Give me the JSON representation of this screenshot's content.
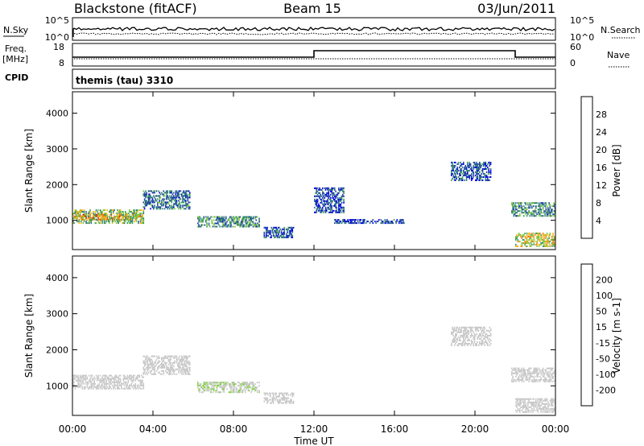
{
  "header": {
    "station": "Blackstone (fitACF)",
    "beam": "Beam 15",
    "date": "03/Jun/2011"
  },
  "status_panels": {
    "nsky_label": "N.Sky",
    "nsky_ticks": [
      "10^5",
      "10^0"
    ],
    "nsearch_label": "N.Search",
    "nsearch_ticks": [
      "10^5",
      "10^0"
    ],
    "freq_label": "Freq.",
    "freq_unit": "[MHz]",
    "freq_ticks": [
      "18",
      "8"
    ],
    "nave_label": "Nave",
    "nave_ticks": [
      "60",
      "0"
    ],
    "cpid_label": "CPID",
    "cpid_value": "themis (tau) 3310"
  },
  "power_scale": {
    "label": "Power [dB]",
    "ticks": [
      "28",
      "24",
      "20",
      "16",
      "12",
      "8",
      "4"
    ],
    "colors": [
      "#0000e6",
      "#1e3ca8",
      "#2f6e8e",
      "#3a9a5a",
      "#7cc83c",
      "#f2b31a",
      "#f07812",
      "#e8220a"
    ]
  },
  "velocity_scale": {
    "label": "Velocity [m s-1]",
    "ticks": [
      "200",
      "100",
      "50",
      "15",
      "-15",
      "-50",
      "-100",
      "-200"
    ],
    "colors": [
      "#1e2fb4",
      "#2b6e4a",
      "#3aa03a",
      "#86d04a",
      "#c8c8c8",
      "#f6c040",
      "#f39820",
      "#ef6a10",
      "#e82010"
    ]
  },
  "axes": {
    "ylabel": "Slant Range [km]",
    "yticks": [
      "4000",
      "3000",
      "2000",
      "1000"
    ],
    "xlabel": "Time UT",
    "xticks": [
      "00:00",
      "04:00",
      "08:00",
      "12:00",
      "16:00",
      "20:00",
      "00:00"
    ]
  },
  "chart_data": [
    {
      "type": "heatmap",
      "panel": "power",
      "x_unit": "hours UT",
      "xlim": [
        0,
        24
      ],
      "ylim": [
        180,
        4600
      ],
      "ylabel": "Slant Range [km]",
      "colorbar_label": "Power [dB]",
      "color_range": [
        0,
        32
      ],
      "regions": [
        {
          "t": [
            0,
            3.5
          ],
          "r": [
            900,
            1300
          ],
          "level": 16
        },
        {
          "t": [
            0,
            3.5
          ],
          "r": [
            1000,
            1150
          ],
          "level": 22
        },
        {
          "t": [
            3.5,
            5.8
          ],
          "r": [
            1300,
            1800
          ],
          "level": 10
        },
        {
          "t": [
            6.2,
            9.3
          ],
          "r": [
            800,
            1100
          ],
          "level": 12
        },
        {
          "t": [
            9.5,
            11
          ],
          "r": [
            500,
            800
          ],
          "level": 8
        },
        {
          "t": [
            12,
            13.5
          ],
          "r": [
            1200,
            1900
          ],
          "level": 6
        },
        {
          "t": [
            13,
            16.5
          ],
          "r": [
            900,
            1000
          ],
          "level": 6
        },
        {
          "t": [
            18.8,
            20.8
          ],
          "r": [
            2100,
            2600
          ],
          "level": 8
        },
        {
          "t": [
            21.8,
            24
          ],
          "r": [
            1100,
            1500
          ],
          "level": 12
        },
        {
          "t": [
            22,
            24
          ],
          "r": [
            250,
            650
          ],
          "level": 20
        }
      ]
    },
    {
      "type": "heatmap",
      "panel": "velocity",
      "x_unit": "hours UT",
      "xlim": [
        0,
        24
      ],
      "ylim": [
        180,
        4600
      ],
      "ylabel": "Slant Range [km]",
      "colorbar_label": "Velocity [m s-1]",
      "color_range": [
        -200,
        200
      ],
      "regions": [
        {
          "t": [
            0,
            3.5
          ],
          "r": [
            900,
            1300
          ],
          "level": 0
        },
        {
          "t": [
            3.5,
            5.8
          ],
          "r": [
            1300,
            1800
          ],
          "level": 0
        },
        {
          "t": [
            6.2,
            9.3
          ],
          "r": [
            800,
            1100
          ],
          "level": -15
        },
        {
          "t": [
            9.5,
            11
          ],
          "r": [
            500,
            800
          ],
          "level": 0
        },
        {
          "t": [
            18.8,
            20.8
          ],
          "r": [
            2100,
            2600
          ],
          "level": 0
        },
        {
          "t": [
            21.8,
            24
          ],
          "r": [
            1100,
            1500
          ],
          "level": 0
        },
        {
          "t": [
            22,
            24
          ],
          "r": [
            250,
            650
          ],
          "level": 0
        }
      ]
    }
  ]
}
